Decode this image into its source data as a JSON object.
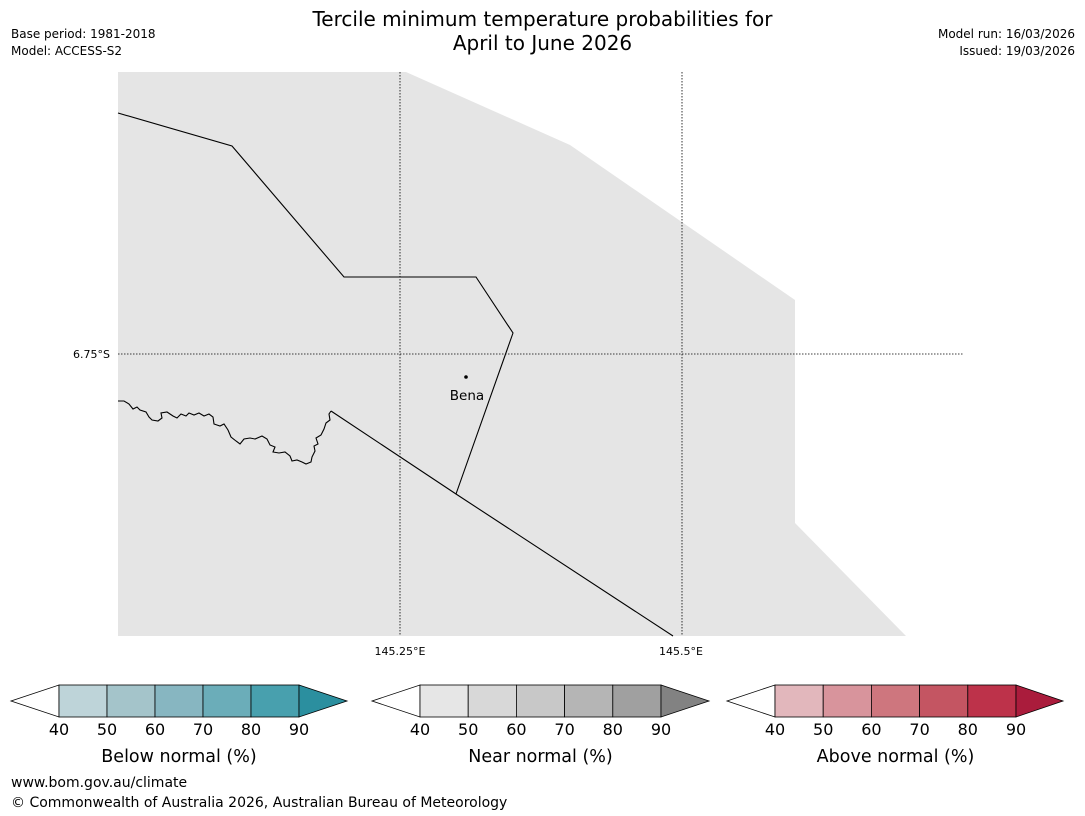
{
  "title": {
    "line1": "Tercile minimum temperature probabilities for",
    "line2": "April to June 2026"
  },
  "meta": {
    "base_period": "Base period: 1981-2018",
    "model": "Model: ACCESS-S2",
    "model_run": "Model run: 16/03/2026",
    "issued": "Issued: 19/03/2026"
  },
  "map": {
    "lat_label": "6.75°S",
    "lon_labels": [
      "145.25°E",
      "145.5°E"
    ],
    "place": "Bena",
    "land_fill": "#e5e5e5"
  },
  "legends": [
    {
      "label": "Below normal (%)",
      "ticks": [
        "40",
        "50",
        "60",
        "70",
        "80",
        "90"
      ],
      "colors": [
        "#ffffff",
        "#bed4d9",
        "#a4c4ca",
        "#87b6c1",
        "#6badb9",
        "#48a0ae",
        "#2b8f9f"
      ]
    },
    {
      "label": "Near normal (%)",
      "ticks": [
        "40",
        "50",
        "60",
        "70",
        "80",
        "90"
      ],
      "colors": [
        "#ffffff",
        "#e6e6e6",
        "#d8d8d8",
        "#c8c8c8",
        "#b5b5b5",
        "#a0a0a0",
        "#828282"
      ]
    },
    {
      "label": "Above normal (%)",
      "ticks": [
        "40",
        "50",
        "60",
        "70",
        "80",
        "90"
      ],
      "colors": [
        "#ffffff",
        "#e2b7bc",
        "#d8949c",
        "#ce767e",
        "#c45562",
        "#bd324a",
        "#aa1c3c"
      ]
    }
  ],
  "footer": {
    "url": "www.bom.gov.au/climate",
    "copyright": "© Commonwealth of Australia 2026, Australian Bureau of Meteorology"
  }
}
